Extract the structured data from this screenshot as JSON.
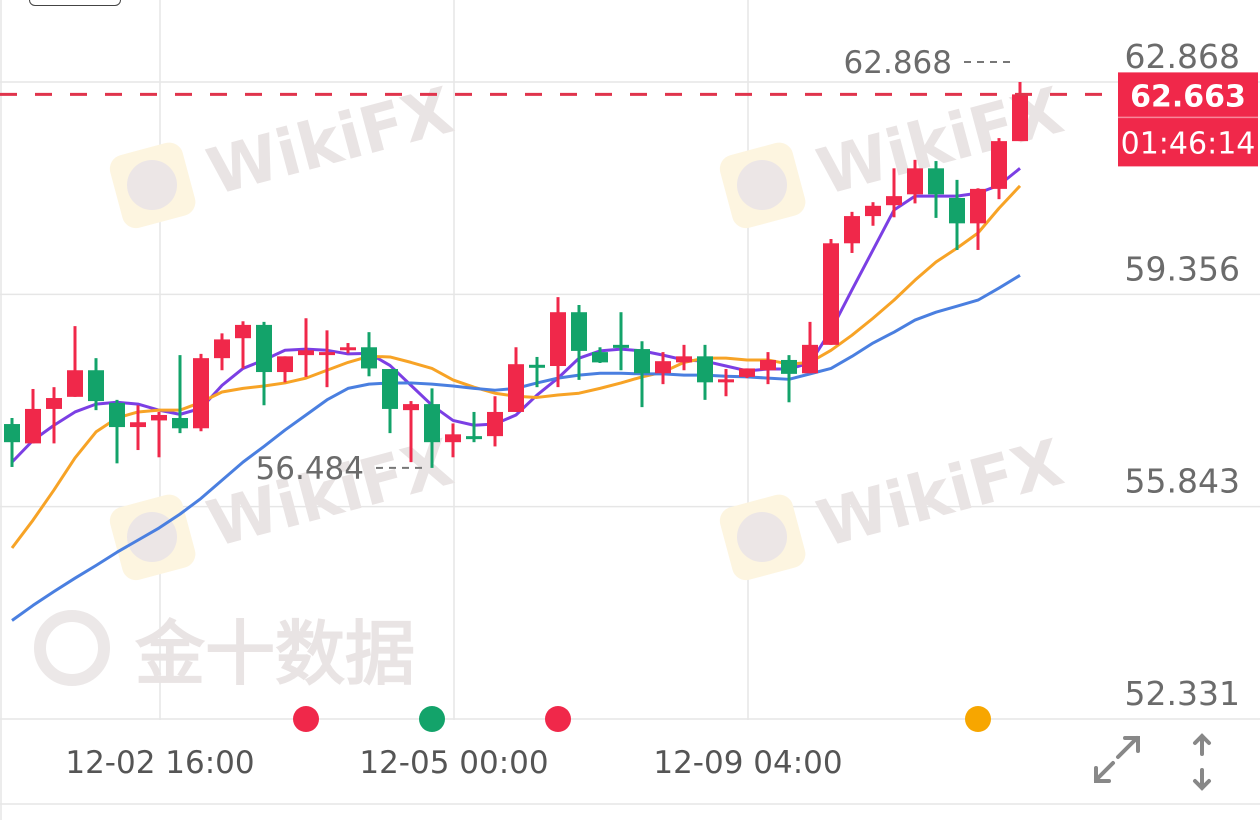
{
  "chart_data": {
    "type": "candlestick",
    "y_axis": {
      "ticks": [
        62.868,
        59.356,
        55.843,
        52.331
      ],
      "range": [
        52.331,
        62.868
      ],
      "position": "right"
    },
    "x_axis": {
      "ticks": [
        {
          "label": "12-02 16:00",
          "candle_index": 7
        },
        {
          "label": "12-05 00:00",
          "candle_index": 21
        },
        {
          "label": "12-09 04:00",
          "candle_index": 35
        }
      ]
    },
    "grid": true,
    "up_color": "#f0284a",
    "down_color": "#13a36a",
    "candles": [
      [
        57.21,
        57.31,
        56.5,
        56.91
      ],
      [
        56.89,
        57.79,
        56.89,
        57.46
      ],
      [
        57.46,
        57.82,
        56.89,
        57.64
      ],
      [
        57.66,
        58.83,
        57.66,
        58.1
      ],
      [
        58.1,
        58.3,
        57.44,
        57.59
      ],
      [
        57.56,
        57.61,
        56.56,
        57.16
      ],
      [
        57.16,
        57.52,
        56.78,
        57.24
      ],
      [
        57.27,
        57.41,
        56.66,
        57.36
      ],
      [
        57.31,
        58.35,
        57.06,
        57.14
      ],
      [
        57.14,
        58.37,
        57.09,
        58.3
      ],
      [
        58.3,
        58.71,
        58.1,
        58.61
      ],
      [
        58.63,
        58.91,
        58.13,
        58.85
      ],
      [
        58.85,
        58.9,
        57.52,
        58.07
      ],
      [
        58.07,
        58.33,
        57.9,
        58.33
      ],
      [
        58.35,
        58.96,
        57.99,
        58.43
      ],
      [
        58.37,
        58.76,
        57.82,
        58.4
      ],
      [
        58.47,
        58.55,
        58.38,
        58.48
      ],
      [
        58.48,
        58.73,
        58.0,
        58.13
      ],
      [
        58.12,
        58.12,
        57.06,
        57.46
      ],
      [
        57.44,
        57.59,
        56.58,
        57.54
      ],
      [
        57.54,
        57.8,
        56.484,
        56.91
      ],
      [
        56.91,
        57.22,
        56.66,
        57.04
      ],
      [
        57.01,
        57.41,
        56.91,
        56.99
      ],
      [
        57.01,
        57.67,
        56.84,
        57.41
      ],
      [
        57.41,
        58.48,
        57.41,
        58.2
      ],
      [
        58.19,
        58.32,
        57.82,
        58.17
      ],
      [
        58.17,
        59.31,
        57.82,
        59.06
      ],
      [
        59.06,
        59.18,
        57.94,
        58.42
      ],
      [
        58.4,
        58.48,
        58.22,
        58.23
      ],
      [
        58.52,
        59.06,
        58.1,
        58.47
      ],
      [
        58.45,
        58.58,
        57.49,
        58.05
      ],
      [
        58.05,
        58.4,
        57.87,
        58.25
      ],
      [
        58.23,
        58.52,
        58.1,
        58.33
      ],
      [
        58.33,
        58.52,
        57.61,
        57.9
      ],
      [
        57.9,
        58.12,
        57.67,
        57.95
      ],
      [
        57.99,
        58.13,
        57.97,
        58.13
      ],
      [
        58.1,
        58.4,
        57.87,
        58.27
      ],
      [
        58.27,
        58.35,
        57.57,
        58.04
      ],
      [
        58.05,
        58.9,
        58.05,
        58.52
      ],
      [
        58.52,
        60.27,
        58.52,
        60.2
      ],
      [
        60.2,
        60.72,
        60.04,
        60.65
      ],
      [
        60.65,
        60.88,
        60.49,
        60.82
      ],
      [
        60.83,
        61.44,
        60.63,
        60.98
      ],
      [
        61.01,
        61.58,
        60.86,
        61.44
      ],
      [
        61.44,
        61.56,
        60.62,
        61.01
      ],
      [
        60.95,
        61.25,
        60.09,
        60.53
      ],
      [
        60.53,
        61.11,
        60.09,
        61.1
      ],
      [
        61.1,
        61.94,
        60.93,
        61.89
      ],
      [
        61.89,
        62.868,
        61.89,
        62.663
      ]
    ],
    "candle_fields": [
      "open",
      "high",
      "low",
      "close"
    ],
    "moving_averages": [
      {
        "color": "#7b3fe4",
        "values": [
          56.58,
          56.94,
          57.19,
          57.41,
          57.54,
          57.57,
          57.54,
          57.44,
          57.37,
          57.47,
          57.85,
          58.13,
          58.27,
          58.43,
          58.45,
          58.43,
          58.37,
          58.38,
          58.18,
          57.85,
          57.52,
          57.27,
          57.19,
          57.21,
          57.36,
          57.69,
          57.97,
          58.3,
          58.42,
          58.45,
          58.42,
          58.35,
          58.27,
          58.25,
          58.17,
          58.09,
          58.12,
          58.12,
          58.22,
          58.76,
          59.43,
          60.09,
          60.75,
          60.98,
          60.98,
          60.98,
          61.03,
          61.16,
          61.44
        ]
      },
      {
        "color": "#f7a326",
        "values": [
          55.16,
          55.62,
          56.12,
          56.65,
          57.08,
          57.31,
          57.41,
          57.44,
          57.44,
          57.57,
          57.74,
          57.8,
          57.84,
          57.89,
          57.97,
          58.1,
          58.23,
          58.33,
          58.32,
          58.23,
          58.13,
          57.94,
          57.82,
          57.72,
          57.67,
          57.65,
          57.69,
          57.72,
          57.8,
          57.89,
          57.99,
          58.07,
          58.23,
          58.3,
          58.3,
          58.27,
          58.27,
          58.2,
          58.23,
          58.43,
          58.68,
          58.96,
          59.26,
          59.59,
          59.89,
          60.12,
          60.37,
          60.78,
          61.15
        ]
      },
      {
        "color": "#4a7fe0",
        "values": [
          53.96,
          54.21,
          54.44,
          54.66,
          54.87,
          55.09,
          55.29,
          55.49,
          55.72,
          55.98,
          56.28,
          56.58,
          56.84,
          57.11,
          57.36,
          57.61,
          57.8,
          57.87,
          57.89,
          57.89,
          57.87,
          57.84,
          57.8,
          57.77,
          57.8,
          57.89,
          57.97,
          58.02,
          58.05,
          58.05,
          58.04,
          58.04,
          58.02,
          58.02,
          58.0,
          57.99,
          57.97,
          57.95,
          58.04,
          58.13,
          58.33,
          58.55,
          58.73,
          58.93,
          59.06,
          59.16,
          59.26,
          59.46,
          59.67
        ]
      }
    ],
    "max_label": {
      "text": "62.868",
      "value": 62.868,
      "candle_index": 48
    },
    "min_label": {
      "text": "56.484",
      "value": 56.484,
      "candle_index": 20
    },
    "current_price": {
      "value": 62.663,
      "text": "62.663",
      "countdown": "01:46:14",
      "color": "#f0284a"
    },
    "events": [
      {
        "candle_index": 14,
        "color": "#f0284a"
      },
      {
        "candle_index": 20,
        "color": "#13a36a"
      },
      {
        "candle_index": 26,
        "color": "#f0284a"
      },
      {
        "candle_index": 46,
        "color": "#f7a600"
      }
    ]
  },
  "watermarks": {
    "wikifx": "WikiFX",
    "jin10": "金十数据"
  },
  "controls": {
    "expand_icon": "expand-diagonal-arrows",
    "scale_icon": "up-down-arrows"
  }
}
